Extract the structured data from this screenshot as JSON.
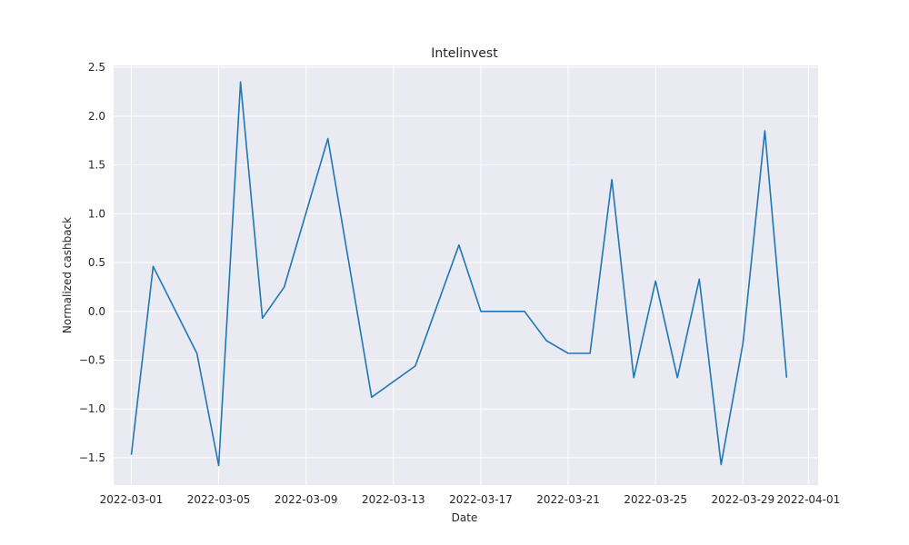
{
  "chart_data": {
    "type": "line",
    "title": "Intelinvest",
    "xlabel": "Date",
    "ylabel": "Normalized cashback",
    "grid": true,
    "ylim": [
      -1.78,
      2.5
    ],
    "xlim": [
      "2022-02-28",
      "2022-04-02"
    ],
    "x_ticks": [
      "2022-03-01",
      "2022-03-05",
      "2022-03-09",
      "2022-03-13",
      "2022-03-17",
      "2022-03-21",
      "2022-03-25",
      "2022-03-29",
      "2022-04-01"
    ],
    "y_ticks": [
      "−1.5",
      "−1.0",
      "−0.5",
      "0.0",
      "0.5",
      "1.0",
      "1.5",
      "2.0",
      "2.5"
    ],
    "series": [
      {
        "color": "#1f77b4",
        "points": [
          {
            "x": "2022-03-01",
            "y": -1.47
          },
          {
            "x": "2022-03-02",
            "y": 0.46
          },
          {
            "x": "2022-03-04",
            "y": -0.43
          },
          {
            "x": "2022-03-05",
            "y": -1.58
          },
          {
            "x": "2022-03-06",
            "y": 2.35
          },
          {
            "x": "2022-03-07",
            "y": -0.07
          },
          {
            "x": "2022-03-08",
            "y": 0.25
          },
          {
            "x": "2022-03-10",
            "y": 1.77
          },
          {
            "x": "2022-03-12",
            "y": -0.88
          },
          {
            "x": "2022-03-14",
            "y": -0.56
          },
          {
            "x": "2022-03-16",
            "y": 0.68
          },
          {
            "x": "2022-03-17",
            "y": 0.0
          },
          {
            "x": "2022-03-19",
            "y": 0.0
          },
          {
            "x": "2022-03-20",
            "y": -0.3
          },
          {
            "x": "2022-03-21",
            "y": -0.43
          },
          {
            "x": "2022-03-22",
            "y": -0.43
          },
          {
            "x": "2022-03-23",
            "y": 1.35
          },
          {
            "x": "2022-03-24",
            "y": -0.68
          },
          {
            "x": "2022-03-25",
            "y": 0.31
          },
          {
            "x": "2022-03-26",
            "y": -0.68
          },
          {
            "x": "2022-03-27",
            "y": 0.33
          },
          {
            "x": "2022-03-28",
            "y": -1.57
          },
          {
            "x": "2022-03-29",
            "y": -0.33
          },
          {
            "x": "2022-03-30",
            "y": 1.85
          },
          {
            "x": "2022-03-31",
            "y": -0.68
          }
        ]
      }
    ],
    "colors": {
      "plot_background": "#eaeaf2",
      "grid": "#ffffff",
      "text": "#262626"
    }
  }
}
